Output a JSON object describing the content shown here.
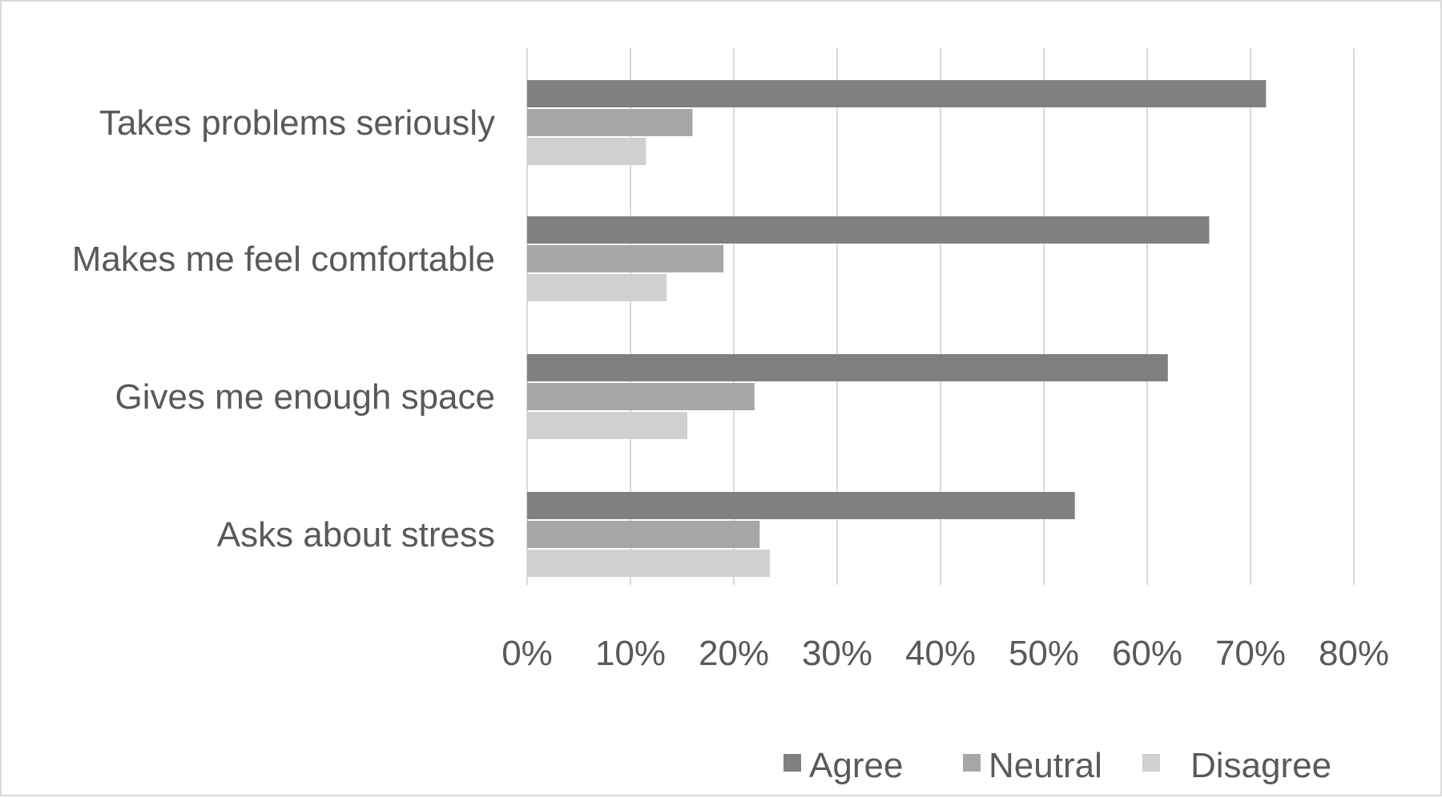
{
  "chart_data": {
    "type": "bar",
    "orientation": "horizontal",
    "categories": [
      "Takes problems seriously",
      "Makes me feel comfortable",
      "Gives me enough space",
      "Asks  about stress"
    ],
    "series": [
      {
        "name": "Agree",
        "color": "#808080",
        "values": [
          71.5,
          66,
          62,
          53
        ]
      },
      {
        "name": "Neutral",
        "color": "#a6a6a6",
        "values": [
          16,
          19,
          22,
          22.5
        ]
      },
      {
        "name": "Disagree",
        "color": "#d0d0d0",
        "values": [
          11.5,
          13.5,
          15.5,
          23.5
        ]
      }
    ],
    "x_ticks": [
      "0%",
      "10%",
      "20%",
      "30%",
      "40%",
      "50%",
      "60%",
      "70%",
      "80%"
    ],
    "xlim": [
      0,
      80
    ],
    "grid": true,
    "legend_position": "bottom-right"
  }
}
